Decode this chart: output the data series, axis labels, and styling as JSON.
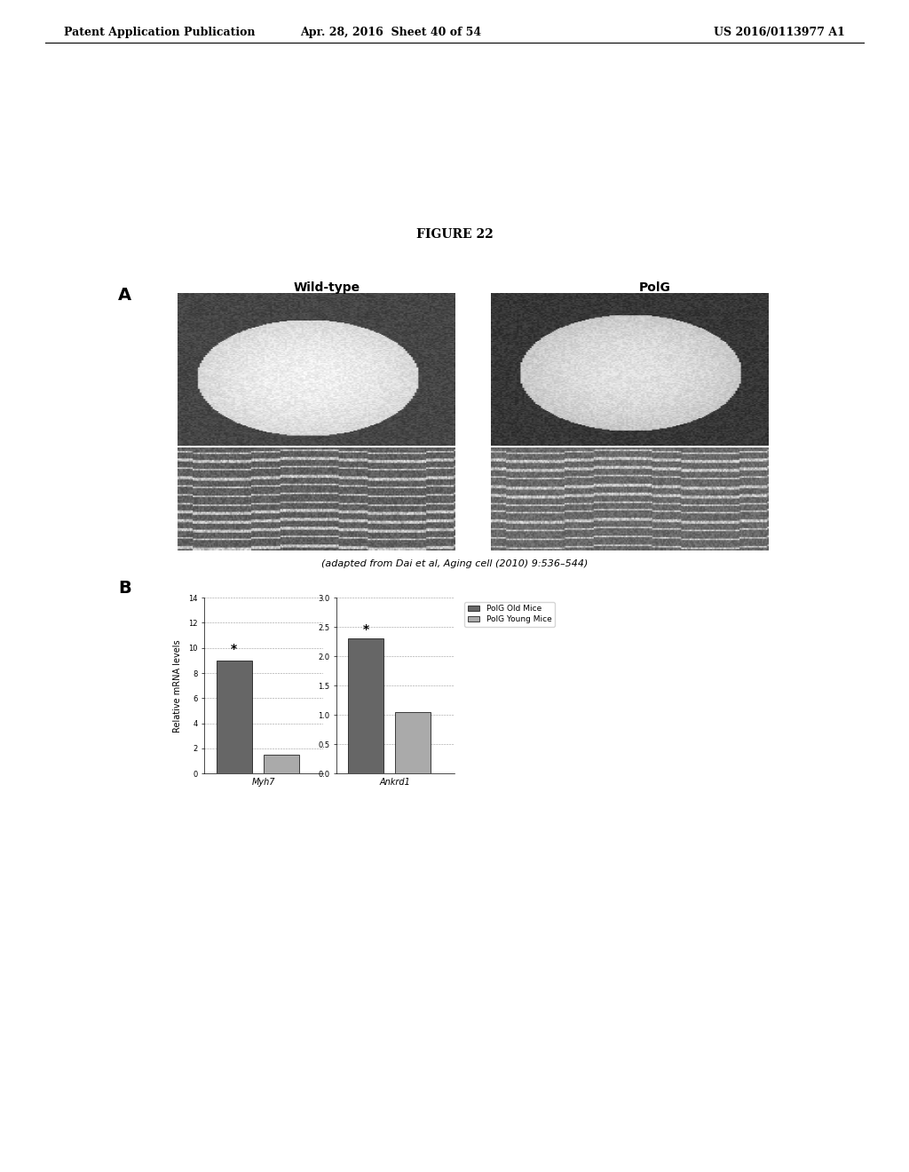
{
  "header_left": "Patent Application Publication",
  "header_middle": "Apr. 28, 2016  Sheet 40 of 54",
  "header_right": "US 2016/0113977 A1",
  "figure_label": "FIGURE 22",
  "panel_a_label": "A",
  "panel_b_label": "B",
  "panel_a_title_left": "Wild-type",
  "panel_a_title_right": "PolG",
  "adapted_text": "(adapted from Dai et al, Aging cell (2010) 9:536–544)",
  "ylabel": "Relative mRNA levels",
  "gene1": "Myh7",
  "gene2": "Ankrd1",
  "ylim1": [
    0,
    14
  ],
  "ylim2": [
    0.0,
    3.0
  ],
  "yticks1": [
    0,
    2,
    4,
    6,
    8,
    10,
    12,
    14
  ],
  "yticks2": [
    0.0,
    0.5,
    1.0,
    1.5,
    2.0,
    2.5,
    3.0
  ],
  "bar1_old": 9.0,
  "bar1_young": 1.5,
  "bar2_old": 2.3,
  "bar2_young": 1.05,
  "color_old": "#666666",
  "color_young": "#aaaaaa",
  "legend_old": "PolG Old Mice",
  "legend_young": "PolG Young Mice",
  "bg_color": "#ffffff",
  "star_gene1": true,
  "star_gene2": true
}
